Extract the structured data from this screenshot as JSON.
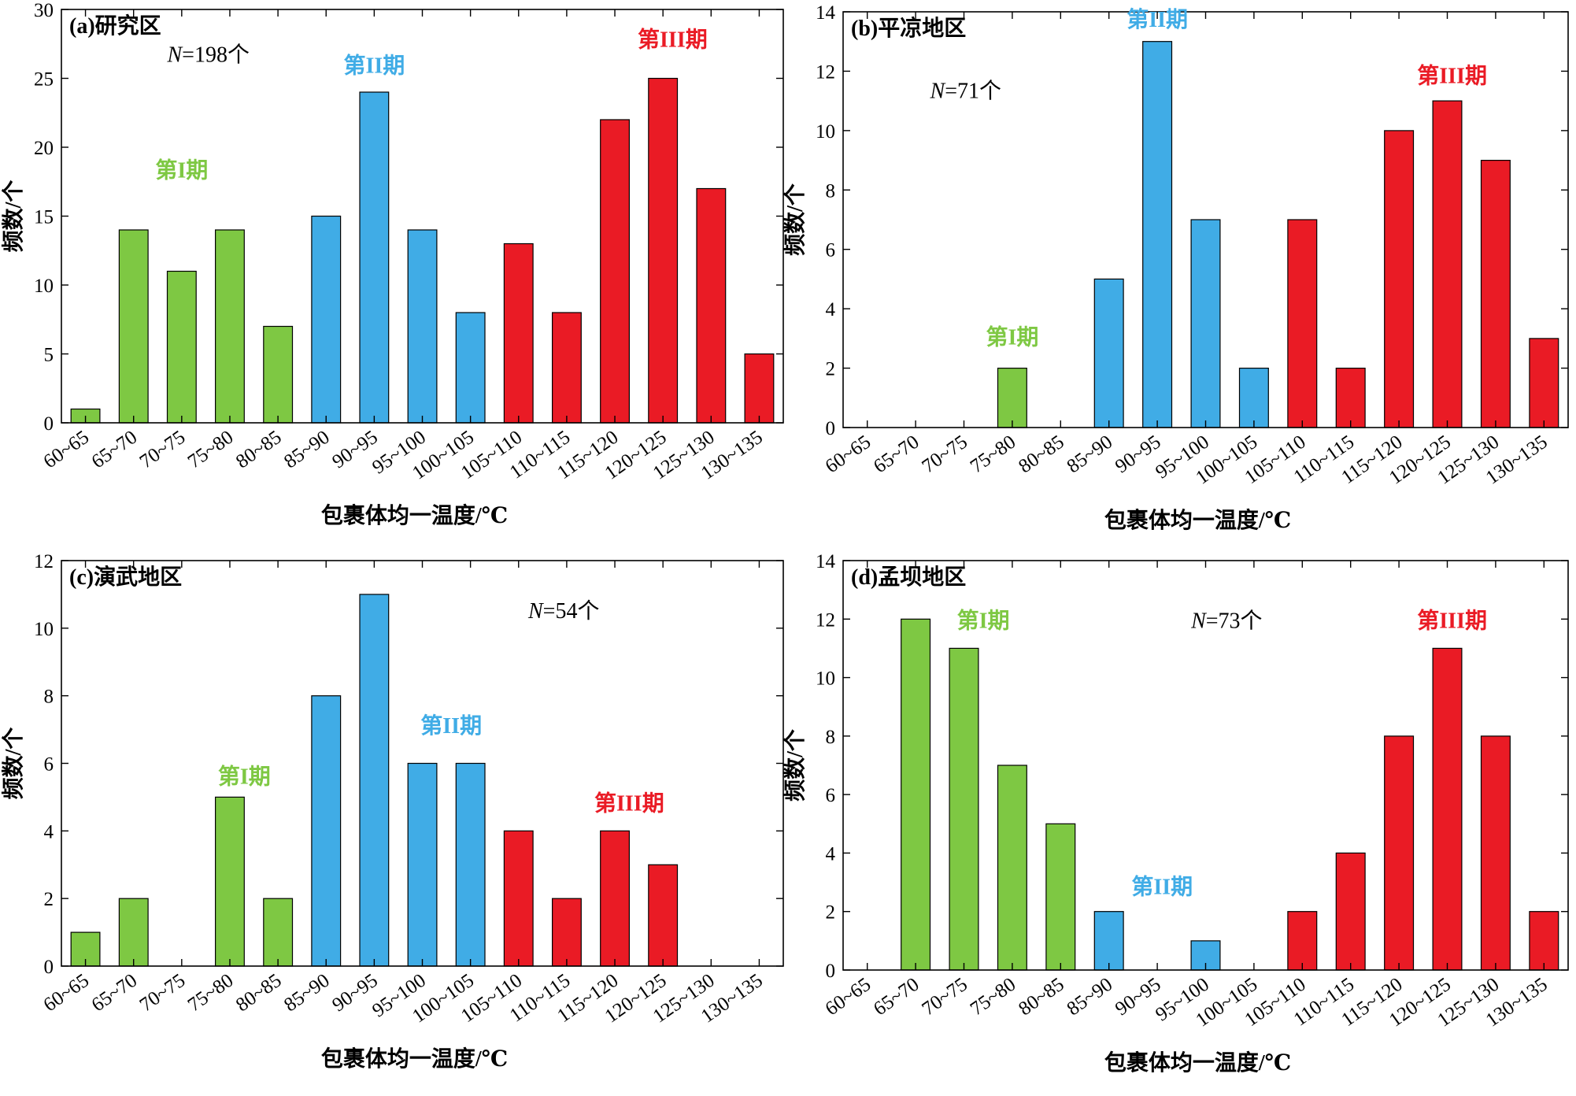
{
  "colors": {
    "phase1": "#7ec843",
    "phase2": "#40ace6",
    "phase3": "#ea1b25"
  },
  "chart_data": [
    {
      "type": "bar",
      "title": "(a)研究区",
      "n_label": "N",
      "n_text": "=198个",
      "xlabel": "包裹体均一温度/℃",
      "ylabel": "频数/个",
      "ylim": [
        0,
        30
      ],
      "yticks": [
        0,
        5,
        10,
        15,
        20,
        25,
        30
      ],
      "categories": [
        "60~65",
        "65~70",
        "70~75",
        "75~80",
        "80~85",
        "85~90",
        "90~95",
        "95~100",
        "100~105",
        "105~110",
        "110~115",
        "115~120",
        "120~125",
        "125~130",
        "130~135"
      ],
      "values": [
        1,
        14,
        11,
        14,
        7,
        15,
        24,
        14,
        8,
        13,
        8,
        22,
        25,
        17,
        5
      ],
      "phases": [
        1,
        1,
        1,
        1,
        1,
        2,
        2,
        2,
        2,
        3,
        3,
        3,
        3,
        3,
        3
      ],
      "phase_labels": [
        {
          "text": "第I期",
          "phase": 1,
          "cat": 2,
          "y": 17.8
        },
        {
          "text": "第II期",
          "phase": 2,
          "cat": 6,
          "y": 25.4
        },
        {
          "text": "第III期",
          "phase": 3,
          "cat": 12.2,
          "y": 27.3
        }
      ],
      "n_pos": {
        "cat": 2.2,
        "y": 26.2
      }
    },
    {
      "type": "bar",
      "title": "(b)平凉地区",
      "n_label": "N",
      "n_text": "=71个",
      "xlabel": "包裹体均一温度/℃",
      "ylabel": "频数/个",
      "ylim": [
        0,
        14
      ],
      "yticks": [
        0,
        2,
        4,
        6,
        8,
        10,
        12,
        14
      ],
      "categories": [
        "60~65",
        "65~70",
        "70~75",
        "75~80",
        "80~85",
        "85~90",
        "90~95",
        "95~100",
        "100~105",
        "105~110",
        "110~115",
        "115~120",
        "120~125",
        "125~130",
        "130~135"
      ],
      "values": [
        0,
        0,
        0,
        2,
        0,
        5,
        13,
        7,
        2,
        7,
        2,
        10,
        11,
        9,
        3
      ],
      "phases": [
        1,
        1,
        1,
        1,
        1,
        2,
        2,
        2,
        2,
        3,
        3,
        3,
        3,
        3,
        3
      ],
      "phase_labels": [
        {
          "text": "第I期",
          "phase": 1,
          "cat": 3,
          "y": 2.8
        },
        {
          "text": "第II期",
          "phase": 2,
          "cat": 6,
          "y": 13.5
        },
        {
          "text": "第III期",
          "phase": 3,
          "cat": 12.1,
          "y": 11.6
        }
      ],
      "n_pos": {
        "cat": 1.8,
        "y": 11.1
      }
    },
    {
      "type": "bar",
      "title": "(c)演武地区",
      "n_label": "N",
      "n_text": "=54个",
      "xlabel": "包裹体均一温度/℃",
      "ylabel": "频数/个",
      "ylim": [
        0,
        12
      ],
      "yticks": [
        0,
        2,
        4,
        6,
        8,
        10,
        12
      ],
      "categories": [
        "60~65",
        "65~70",
        "70~75",
        "75~80",
        "80~85",
        "85~90",
        "90~95",
        "95~100",
        "100~105",
        "105~110",
        "110~115",
        "115~120",
        "120~125",
        "125~130",
        "130~135"
      ],
      "values": [
        1,
        2,
        0,
        5,
        2,
        8,
        11,
        6,
        6,
        4,
        2,
        4,
        3,
        0,
        0
      ],
      "phases": [
        1,
        1,
        1,
        1,
        1,
        2,
        2,
        2,
        2,
        3,
        3,
        3,
        3,
        3,
        3
      ],
      "phase_labels": [
        {
          "text": "第I期",
          "phase": 1,
          "cat": 3.3,
          "y": 5.4
        },
        {
          "text": "第II期",
          "phase": 2,
          "cat": 7.6,
          "y": 6.9
        },
        {
          "text": "第III期",
          "phase": 3,
          "cat": 11.3,
          "y": 4.6
        }
      ],
      "n_pos": {
        "cat": 9.7,
        "y": 10.3
      }
    },
    {
      "type": "bar",
      "title": "(d)孟坝地区",
      "n_label": "N",
      "n_text": "=73个",
      "xlabel": "包裹体均一温度/℃",
      "ylabel": "频数/个",
      "ylim": [
        0,
        14
      ],
      "yticks": [
        0,
        2,
        4,
        6,
        8,
        10,
        12,
        14
      ],
      "categories": [
        "60~65",
        "65~70",
        "70~75",
        "75~80",
        "80~85",
        "85~90",
        "90~95",
        "95~100",
        "100~105",
        "105~110",
        "110~115",
        "115~120",
        "120~125",
        "125~130",
        "130~135"
      ],
      "values": [
        0,
        12,
        11,
        7,
        5,
        2,
        0,
        1,
        0,
        2,
        4,
        8,
        11,
        8,
        2
      ],
      "phases": [
        1,
        1,
        1,
        1,
        1,
        2,
        2,
        2,
        2,
        3,
        3,
        3,
        3,
        3,
        3
      ],
      "phase_labels": [
        {
          "text": "第I期",
          "phase": 1,
          "cat": 2.4,
          "y": 11.7
        },
        {
          "text": "第II期",
          "phase": 2,
          "cat": 6.1,
          "y": 2.6
        },
        {
          "text": "第III期",
          "phase": 3,
          "cat": 12.1,
          "y": 11.7
        }
      ],
      "n_pos": {
        "cat": 7.2,
        "y": 11.7
      }
    }
  ]
}
